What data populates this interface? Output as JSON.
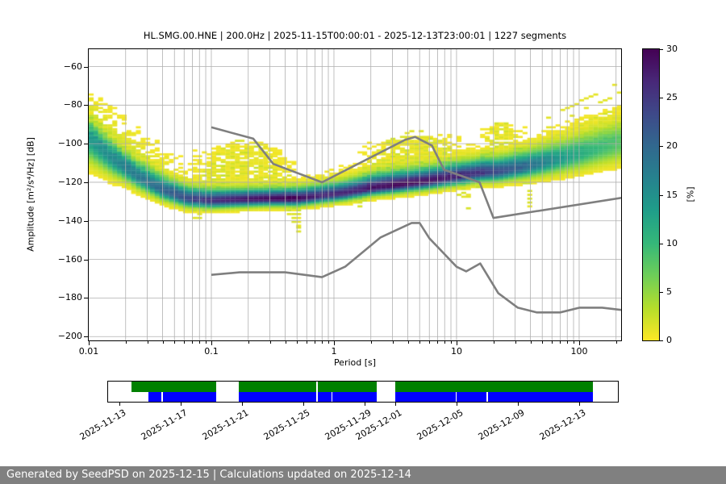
{
  "header": {
    "title": "HL.SMG.00.HNE | 200.0Hz | 2025-11-15T00:00:01 - 2025-12-13T23:00:01 | 1227 segments"
  },
  "footer": {
    "text": "Generated by SeedPSD on 2025-12-15 | Calculations updated on 2025-12-14",
    "bg": "#808080",
    "fg": "#ffffff"
  },
  "chart_data": {
    "type": "heatmap",
    "title": "HL.SMG.00.HNE | 200.0Hz | 2025-11-15T00:00:01 - 2025-12-13T23:00:01 | 1227 segments",
    "xlabel": "Period [s]",
    "ylabel": "Amplitude [m²/s⁴/Hz] [dB]",
    "xscale": "log",
    "xlim": [
      0.01,
      220
    ],
    "ylim": [
      -202,
      -51
    ],
    "xticks": [
      0.01,
      0.1,
      1,
      10,
      100
    ],
    "yticks": [
      -60,
      -80,
      -100,
      -120,
      -140,
      -160,
      -180,
      -200
    ],
    "grid": true,
    "grid_color": "#b0b0b0",
    "colorbar": {
      "label": "[%]",
      "min": 0,
      "max": 30,
      "ticks": [
        0,
        5,
        10,
        15,
        20,
        25,
        30
      ],
      "colormap": "viridis_r",
      "stops": [
        "#440154",
        "#482878",
        "#3e4989",
        "#31688e",
        "#26828e",
        "#1f9e89",
        "#35b779",
        "#6ece58",
        "#b5de2b",
        "#fde725"
      ]
    },
    "noise_models": {
      "color": "#7f7f7f",
      "width": 2.6,
      "nhnm": [
        [
          0.1,
          -91.5
        ],
        [
          0.22,
          -97.4
        ],
        [
          0.32,
          -110.5
        ],
        [
          0.8,
          -120.0
        ],
        [
          3.8,
          -98.0
        ],
        [
          4.6,
          -96.5
        ],
        [
          6.3,
          -101.0
        ],
        [
          7.9,
          -113.5
        ],
        [
          15.4,
          -120.0
        ],
        [
          20.0,
          -138.5
        ],
        [
          354.8,
          -126.0
        ]
      ],
      "nlnm": [
        [
          0.1,
          -168.0
        ],
        [
          0.17,
          -166.7
        ],
        [
          0.4,
          -166.7
        ],
        [
          0.8,
          -169.2
        ],
        [
          1.24,
          -163.7
        ],
        [
          2.4,
          -148.6
        ],
        [
          4.3,
          -141.1
        ],
        [
          5.0,
          -141.1
        ],
        [
          6.0,
          -149.0
        ],
        [
          10.0,
          -163.8
        ],
        [
          12.0,
          -166.2
        ],
        [
          15.6,
          -162.1
        ],
        [
          21.9,
          -177.5
        ],
        [
          31.6,
          -185.0
        ],
        [
          45.0,
          -187.5
        ],
        [
          70.0,
          -187.5
        ],
        [
          101.0,
          -185.0
        ],
        [
          154.0,
          -185.0
        ],
        [
          328.0,
          -187.5
        ]
      ]
    },
    "ppsd": {
      "bins_per_decade": 26,
      "db_bin": 1,
      "seed": 42,
      "threshold": 0.45,
      "ridge": [
        [
          -2.0,
          -97
        ],
        [
          -1.8,
          -108
        ],
        [
          -1.6,
          -117
        ],
        [
          -1.4,
          -124
        ],
        [
          -1.2,
          -128.5
        ],
        [
          -1.0,
          -129.5
        ],
        [
          -0.8,
          -129
        ],
        [
          -0.55,
          -128.5
        ],
        [
          -0.3,
          -128.5
        ],
        [
          -0.1,
          -127
        ],
        [
          0.1,
          -125.5
        ],
        [
          0.3,
          -123
        ],
        [
          0.5,
          -121.5
        ],
        [
          0.75,
          -119.5
        ],
        [
          1.0,
          -117
        ],
        [
          1.2,
          -115
        ],
        [
          1.35,
          -114.5
        ],
        [
          1.6,
          -111.5
        ],
        [
          1.85,
          -108
        ],
        [
          2.0,
          -105.5
        ],
        [
          2.2,
          -102
        ],
        [
          2.34,
          -100
        ]
      ],
      "peak": [
        [
          -2.0,
          14
        ],
        [
          -1.8,
          16
        ],
        [
          -1.5,
          19
        ],
        [
          -1.2,
          23
        ],
        [
          -0.9,
          27
        ],
        [
          -0.6,
          29
        ],
        [
          -0.35,
          30
        ],
        [
          -0.1,
          27
        ],
        [
          0.2,
          27
        ],
        [
          0.5,
          30
        ],
        [
          0.8,
          29
        ],
        [
          1.1,
          26
        ],
        [
          1.35,
          23
        ],
        [
          1.6,
          19
        ],
        [
          1.85,
          14
        ],
        [
          2.05,
          11
        ],
        [
          2.34,
          8
        ]
      ],
      "sigma_lo": [
        [
          -2.0,
          7
        ],
        [
          -1.7,
          4
        ],
        [
          -1.4,
          3
        ],
        [
          -1.1,
          2.4
        ],
        [
          -0.5,
          2.2
        ],
        [
          0,
          2.2
        ],
        [
          0.5,
          2.4
        ],
        [
          1.0,
          2.6
        ],
        [
          1.4,
          3
        ],
        [
          1.8,
          4
        ],
        [
          2.34,
          5.5
        ]
      ],
      "sigma_hi": [
        [
          -2.0,
          6
        ],
        [
          -1.7,
          5
        ],
        [
          -1.4,
          4.5
        ],
        [
          -1.1,
          3.6
        ],
        [
          -0.5,
          3.2
        ],
        [
          0,
          3.6
        ],
        [
          0.4,
          4.4
        ],
        [
          0.8,
          4.2
        ],
        [
          1.2,
          4.4
        ],
        [
          1.6,
          5
        ],
        [
          2.0,
          6
        ],
        [
          2.34,
          7
        ]
      ],
      "wings": [
        [
          -2.0,
          2.6
        ],
        [
          -1.6,
          2.0
        ],
        [
          -1.2,
          0.9
        ],
        [
          -0.8,
          0.55
        ],
        [
          -0.4,
          0.5
        ],
        [
          0,
          0.6
        ],
        [
          0.5,
          0.7
        ],
        [
          1.0,
          0.6
        ],
        [
          1.5,
          0.5
        ],
        [
          2.0,
          0.9
        ],
        [
          2.34,
          1.1
        ]
      ],
      "wing_sigma": 13,
      "humps": [
        {
          "cx": -0.72,
          "sx": 0.34,
          "apex": -98,
          "curv": 17,
          "lines": 10,
          "spacing": 2.2,
          "amp": 1.3
        },
        {
          "cx": 0.66,
          "sx": 0.36,
          "apex": -93.5,
          "curv": 15,
          "lines": 9,
          "spacing": 2.3,
          "amp": 1.3
        },
        {
          "cx": 1.37,
          "sx": 0.18,
          "apex": -88.5,
          "curv": 20,
          "lines": 7,
          "spacing": 2.0,
          "amp": 1.3
        }
      ],
      "blobs": [
        {
          "cx": -0.72,
          "cy": -108,
          "sx": 0.28,
          "sy": 8,
          "amp": 0.9
        },
        {
          "cx": 0.66,
          "cy": -102,
          "sx": 0.3,
          "sy": 7,
          "amp": 0.7
        },
        {
          "cx": 1.37,
          "cy": -93,
          "sx": 0.15,
          "sy": 5,
          "amp": 0.6
        }
      ],
      "streaks": [
        {
          "x0": 1.72,
          "x1": 2.35,
          "db0": -87,
          "slope": 30,
          "offsets": [
            0,
            -5,
            -12
          ],
          "amp": 1.1
        }
      ]
    }
  },
  "timeline": {
    "green_color": "#008000",
    "blue_color": "#0000ff",
    "ticks": [
      {
        "label": "2025-11-13",
        "frac": 2.2
      },
      {
        "label": "2025-11-17",
        "frac": 14.2
      },
      {
        "label": "2025-11-21",
        "frac": 26.3
      },
      {
        "label": "2025-11-25",
        "frac": 38.3
      },
      {
        "label": "2025-11-29",
        "frac": 50.3
      },
      {
        "label": "2025-12-01",
        "frac": 56.3
      },
      {
        "label": "2025-12-05",
        "frac": 68.4
      },
      {
        "label": "2025-12-09",
        "frac": 80.4
      },
      {
        "label": "2025-12-13",
        "frac": 92.4
      }
    ],
    "green_segments": [
      [
        4.6,
        21.2
      ],
      [
        25.6,
        40.8
      ],
      [
        41.1,
        52.7
      ],
      [
        56.3,
        95.1
      ]
    ],
    "blue_segments": [
      [
        7.9,
        10.4
      ],
      [
        10.8,
        21.2
      ],
      [
        25.6,
        40.8
      ],
      [
        41.1,
        43.8
      ],
      [
        44.0,
        52.7
      ],
      [
        56.3,
        68.2
      ],
      [
        68.4,
        74.2
      ],
      [
        74.5,
        95.1
      ]
    ]
  }
}
